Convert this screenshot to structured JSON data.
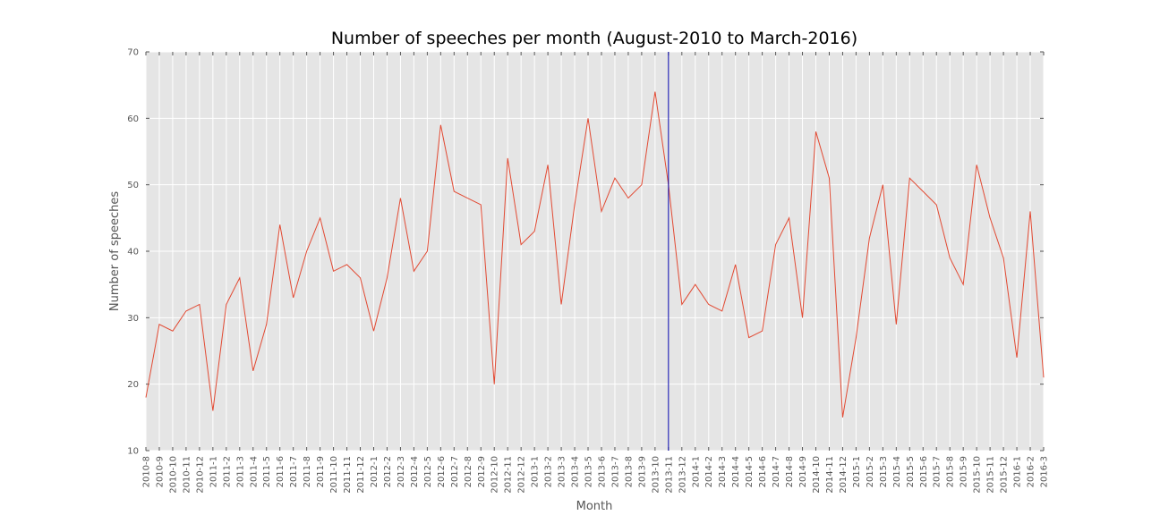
{
  "chart_data": {
    "type": "line",
    "title": "Number of speeches per month (August-2010 to March-2016)",
    "xlabel": "Month",
    "ylabel": "Number of speeches",
    "ylim": [
      10,
      70
    ],
    "yticks": [
      "10",
      "20",
      "30",
      "40",
      "50",
      "60",
      "70"
    ],
    "grid": true,
    "background": "#e5e5e5",
    "line_color": "#e24a33",
    "marker_line": {
      "x": "2013-11",
      "color": "#0000aa"
    },
    "categories": [
      "2010-8",
      "2010-9",
      "2010-10",
      "2010-11",
      "2010-12",
      "2011-1",
      "2011-2",
      "2011-3",
      "2011-4",
      "2011-5",
      "2011-6",
      "2011-7",
      "2011-8",
      "2011-9",
      "2011-10",
      "2011-11",
      "2011-12",
      "2012-1",
      "2012-2",
      "2012-3",
      "2012-4",
      "2012-5",
      "2012-6",
      "2012-7",
      "2012-8",
      "2012-9",
      "2012-10",
      "2012-11",
      "2012-12",
      "2013-1",
      "2013-2",
      "2013-3",
      "2013-4",
      "2013-5",
      "2013-6",
      "2013-7",
      "2013-8",
      "2013-9",
      "2013-10",
      "2013-11",
      "2013-12",
      "2014-1",
      "2014-2",
      "2014-3",
      "2014-4",
      "2014-5",
      "2014-6",
      "2014-7",
      "2014-8",
      "2014-9",
      "2014-10",
      "2014-11",
      "2014-12",
      "2015-1",
      "2015-2",
      "2015-3",
      "2015-4",
      "2015-5",
      "2015-6",
      "2015-7",
      "2015-8",
      "2015-9",
      "2015-10",
      "2015-11",
      "2015-12",
      "2016-1",
      "2016-2",
      "2016-3"
    ],
    "series": [
      {
        "values": [
          18,
          29,
          28,
          31,
          32,
          16,
          32,
          36,
          22,
          29,
          44,
          33,
          40,
          45,
          37,
          38,
          36,
          28,
          36,
          48,
          37,
          40,
          59,
          49,
          null,
          47,
          20,
          54,
          41,
          43,
          53,
          32,
          47,
          60,
          46,
          51,
          48,
          50,
          64,
          50,
          32,
          35,
          32,
          31,
          38,
          27,
          28,
          41,
          45,
          30,
          58,
          51,
          15,
          27,
          42,
          50,
          29,
          51,
          null,
          47,
          39,
          35,
          53,
          45,
          39,
          24,
          46,
          21
        ]
      }
    ]
  }
}
